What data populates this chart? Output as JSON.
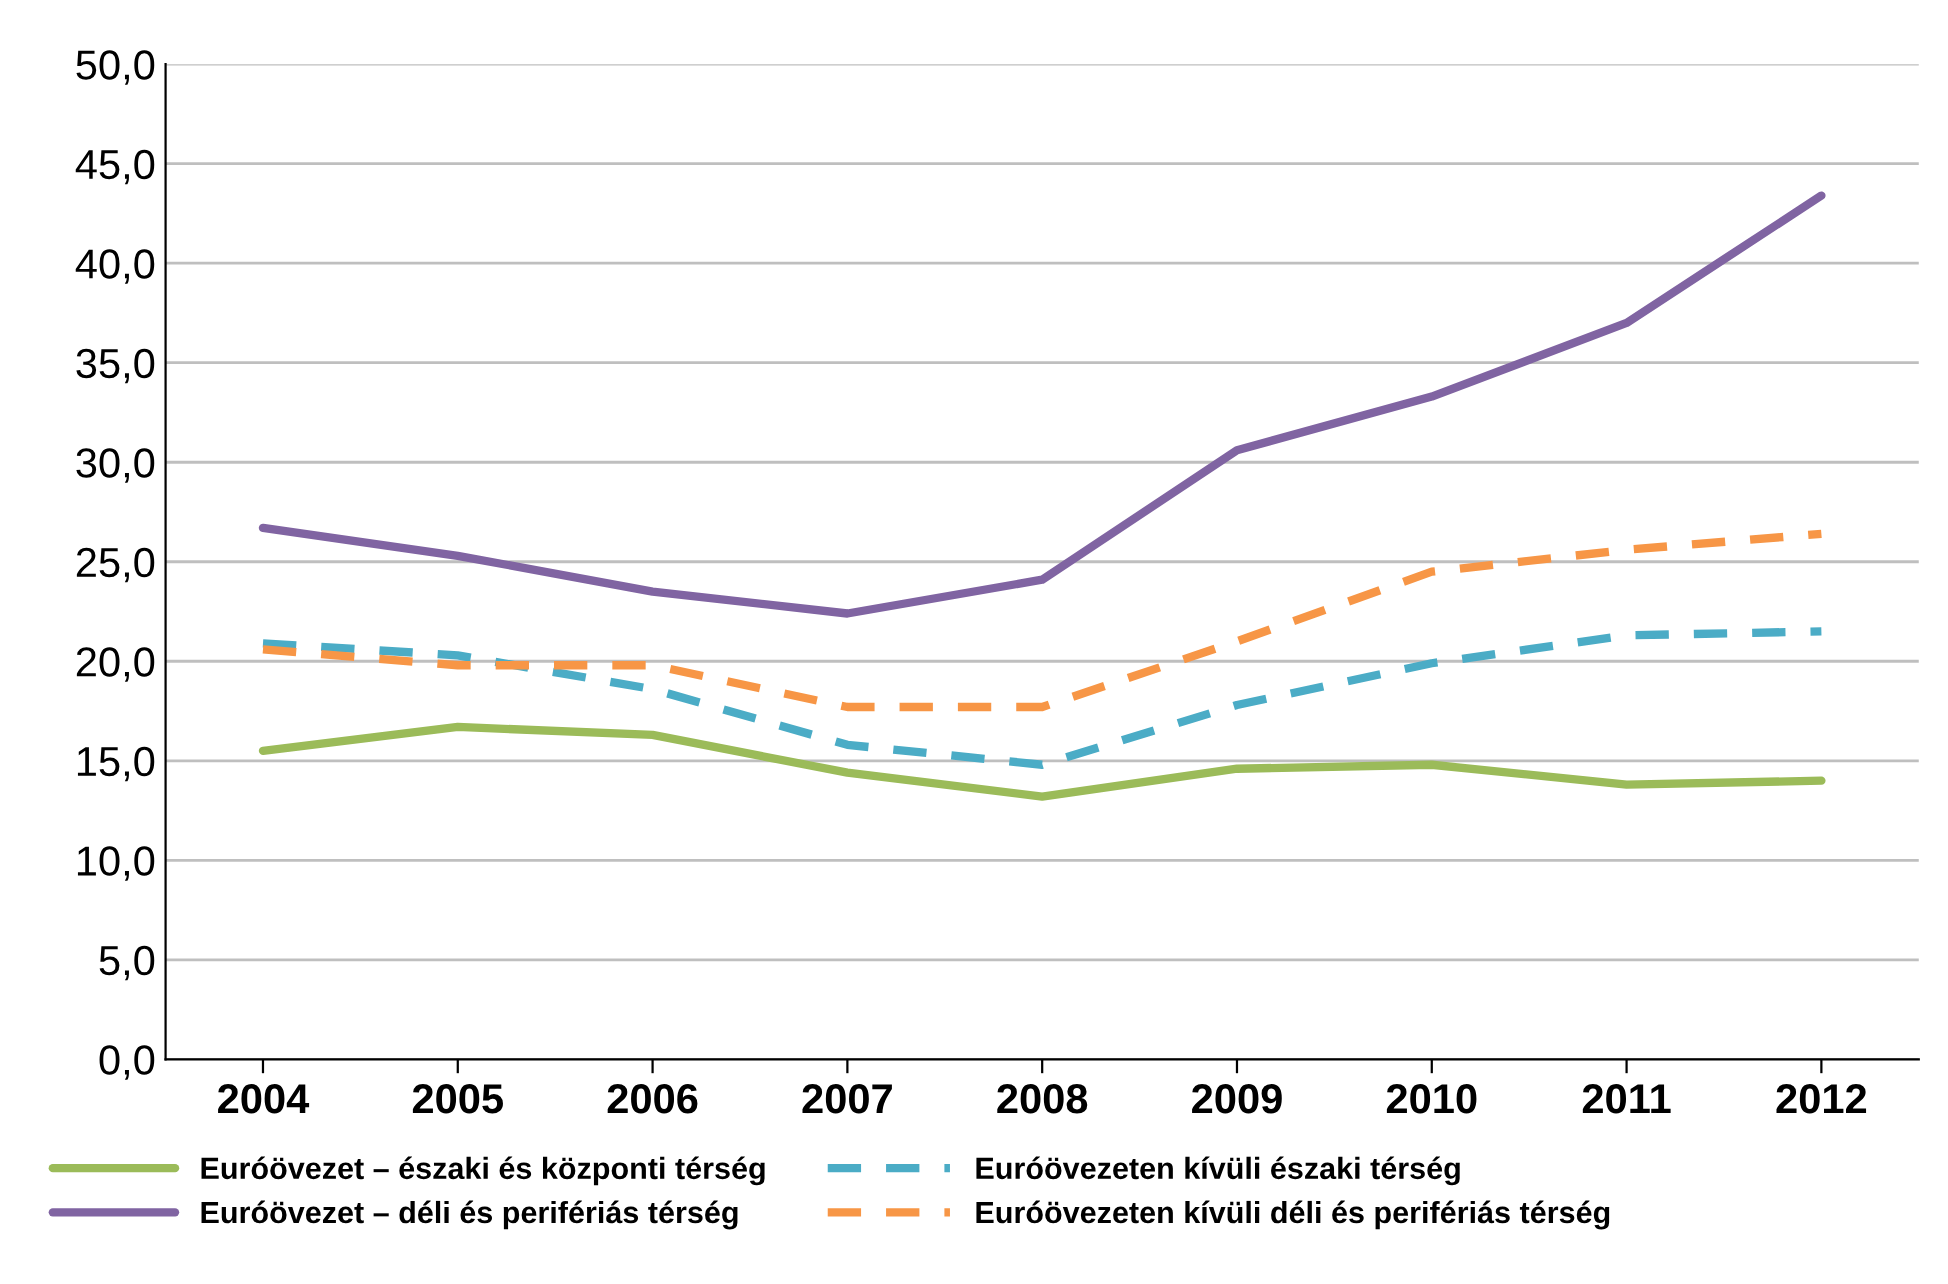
{
  "chart_data": {
    "type": "line",
    "categories": [
      "2004",
      "2005",
      "2006",
      "2007",
      "2008",
      "2009",
      "2010",
      "2011",
      "2012"
    ],
    "series": [
      {
        "name": "Euróövezet – északi és központi térség",
        "color": "#9bbb59",
        "line_style": "solid",
        "values": [
          15.5,
          16.7,
          16.3,
          14.4,
          13.2,
          14.6,
          14.8,
          13.8,
          14.0
        ]
      },
      {
        "name": "Euróövezet – déli és perifériás térség",
        "color": "#8064a2",
        "line_style": "solid",
        "values": [
          26.7,
          25.3,
          23.5,
          22.4,
          24.1,
          30.6,
          33.3,
          37.0,
          43.4
        ]
      },
      {
        "name": "Euróövezeten kívüli északi térség",
        "color": "#4bacc6",
        "line_style": "dashed",
        "values": [
          20.9,
          20.3,
          18.6,
          15.8,
          14.8,
          17.8,
          19.9,
          21.3,
          21.5
        ]
      },
      {
        "name": "Euróövezeten kívüli déli és perifériás térség",
        "color": "#f79646",
        "line_style": "dashed",
        "values": [
          20.6,
          19.8,
          19.8,
          17.7,
          17.7,
          21.0,
          24.5,
          25.6,
          26.4
        ]
      }
    ],
    "ylim": [
      0,
      50
    ],
    "yticks": [
      {
        "value": 0,
        "label": "0,0"
      },
      {
        "value": 5,
        "label": "5,0"
      },
      {
        "value": 10,
        "label": "10,0"
      },
      {
        "value": 15,
        "label": "15,0"
      },
      {
        "value": 20,
        "label": "20,0"
      },
      {
        "value": 25,
        "label": "25,0"
      },
      {
        "value": 30,
        "label": "30,0"
      },
      {
        "value": 35,
        "label": "35,0"
      },
      {
        "value": 40,
        "label": "40,0"
      },
      {
        "value": 45,
        "label": "45,0"
      },
      {
        "value": 50,
        "label": "50,0"
      }
    ],
    "grid": "y",
    "legend": "bottom",
    "marker": "none"
  }
}
